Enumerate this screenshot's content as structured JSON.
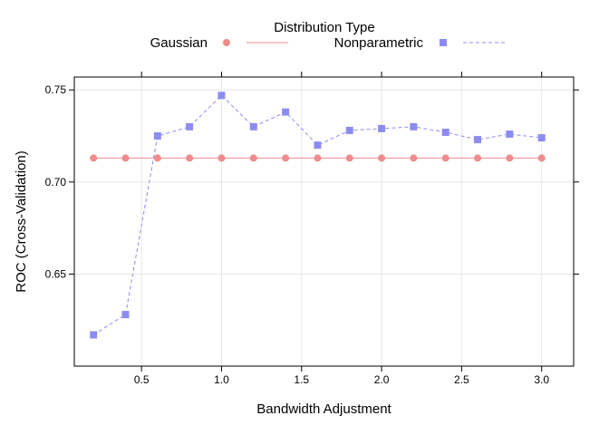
{
  "chart_data": {
    "type": "line",
    "legend": {
      "title": "Distribution Type",
      "position": "top"
    },
    "xlabel": "Bandwidth Adjustment",
    "ylabel": "ROC (Cross-Validation)",
    "xlim": [
      0.08,
      3.2
    ],
    "ylim": [
      0.6,
      0.757
    ],
    "x_ticks": [
      0.5,
      1.0,
      1.5,
      2.0,
      2.5,
      3.0
    ],
    "x_tick_labels": [
      "0.5",
      "1.0",
      "1.5",
      "2.0",
      "2.5",
      "3.0"
    ],
    "y_ticks": [
      0.65,
      0.7,
      0.75
    ],
    "y_tick_labels": [
      "0.65",
      "0.70",
      "0.75"
    ],
    "grid": true,
    "x": [
      0.2,
      0.4,
      0.6,
      0.8,
      1.0,
      1.2,
      1.4,
      1.6,
      1.8,
      2.0,
      2.2,
      2.4,
      2.6,
      2.8,
      3.0
    ],
    "series": [
      {
        "name": "Gaussian",
        "marker": "circle",
        "line_style": "solid",
        "color": "#f08c8c",
        "values": [
          0.713,
          0.713,
          0.713,
          0.713,
          0.713,
          0.713,
          0.713,
          0.713,
          0.713,
          0.713,
          0.713,
          0.713,
          0.713,
          0.713,
          0.713
        ]
      },
      {
        "name": "Nonparametric",
        "marker": "square",
        "line_style": "dashed",
        "color": "#8c8cf0",
        "values": [
          0.617,
          0.628,
          0.725,
          0.73,
          0.747,
          0.73,
          0.738,
          0.72,
          0.728,
          0.729,
          0.73,
          0.727,
          0.723,
          0.726,
          0.724
        ]
      }
    ]
  },
  "style": {
    "grid_color": "#e6e6e6",
    "frame_color": "#000000"
  }
}
